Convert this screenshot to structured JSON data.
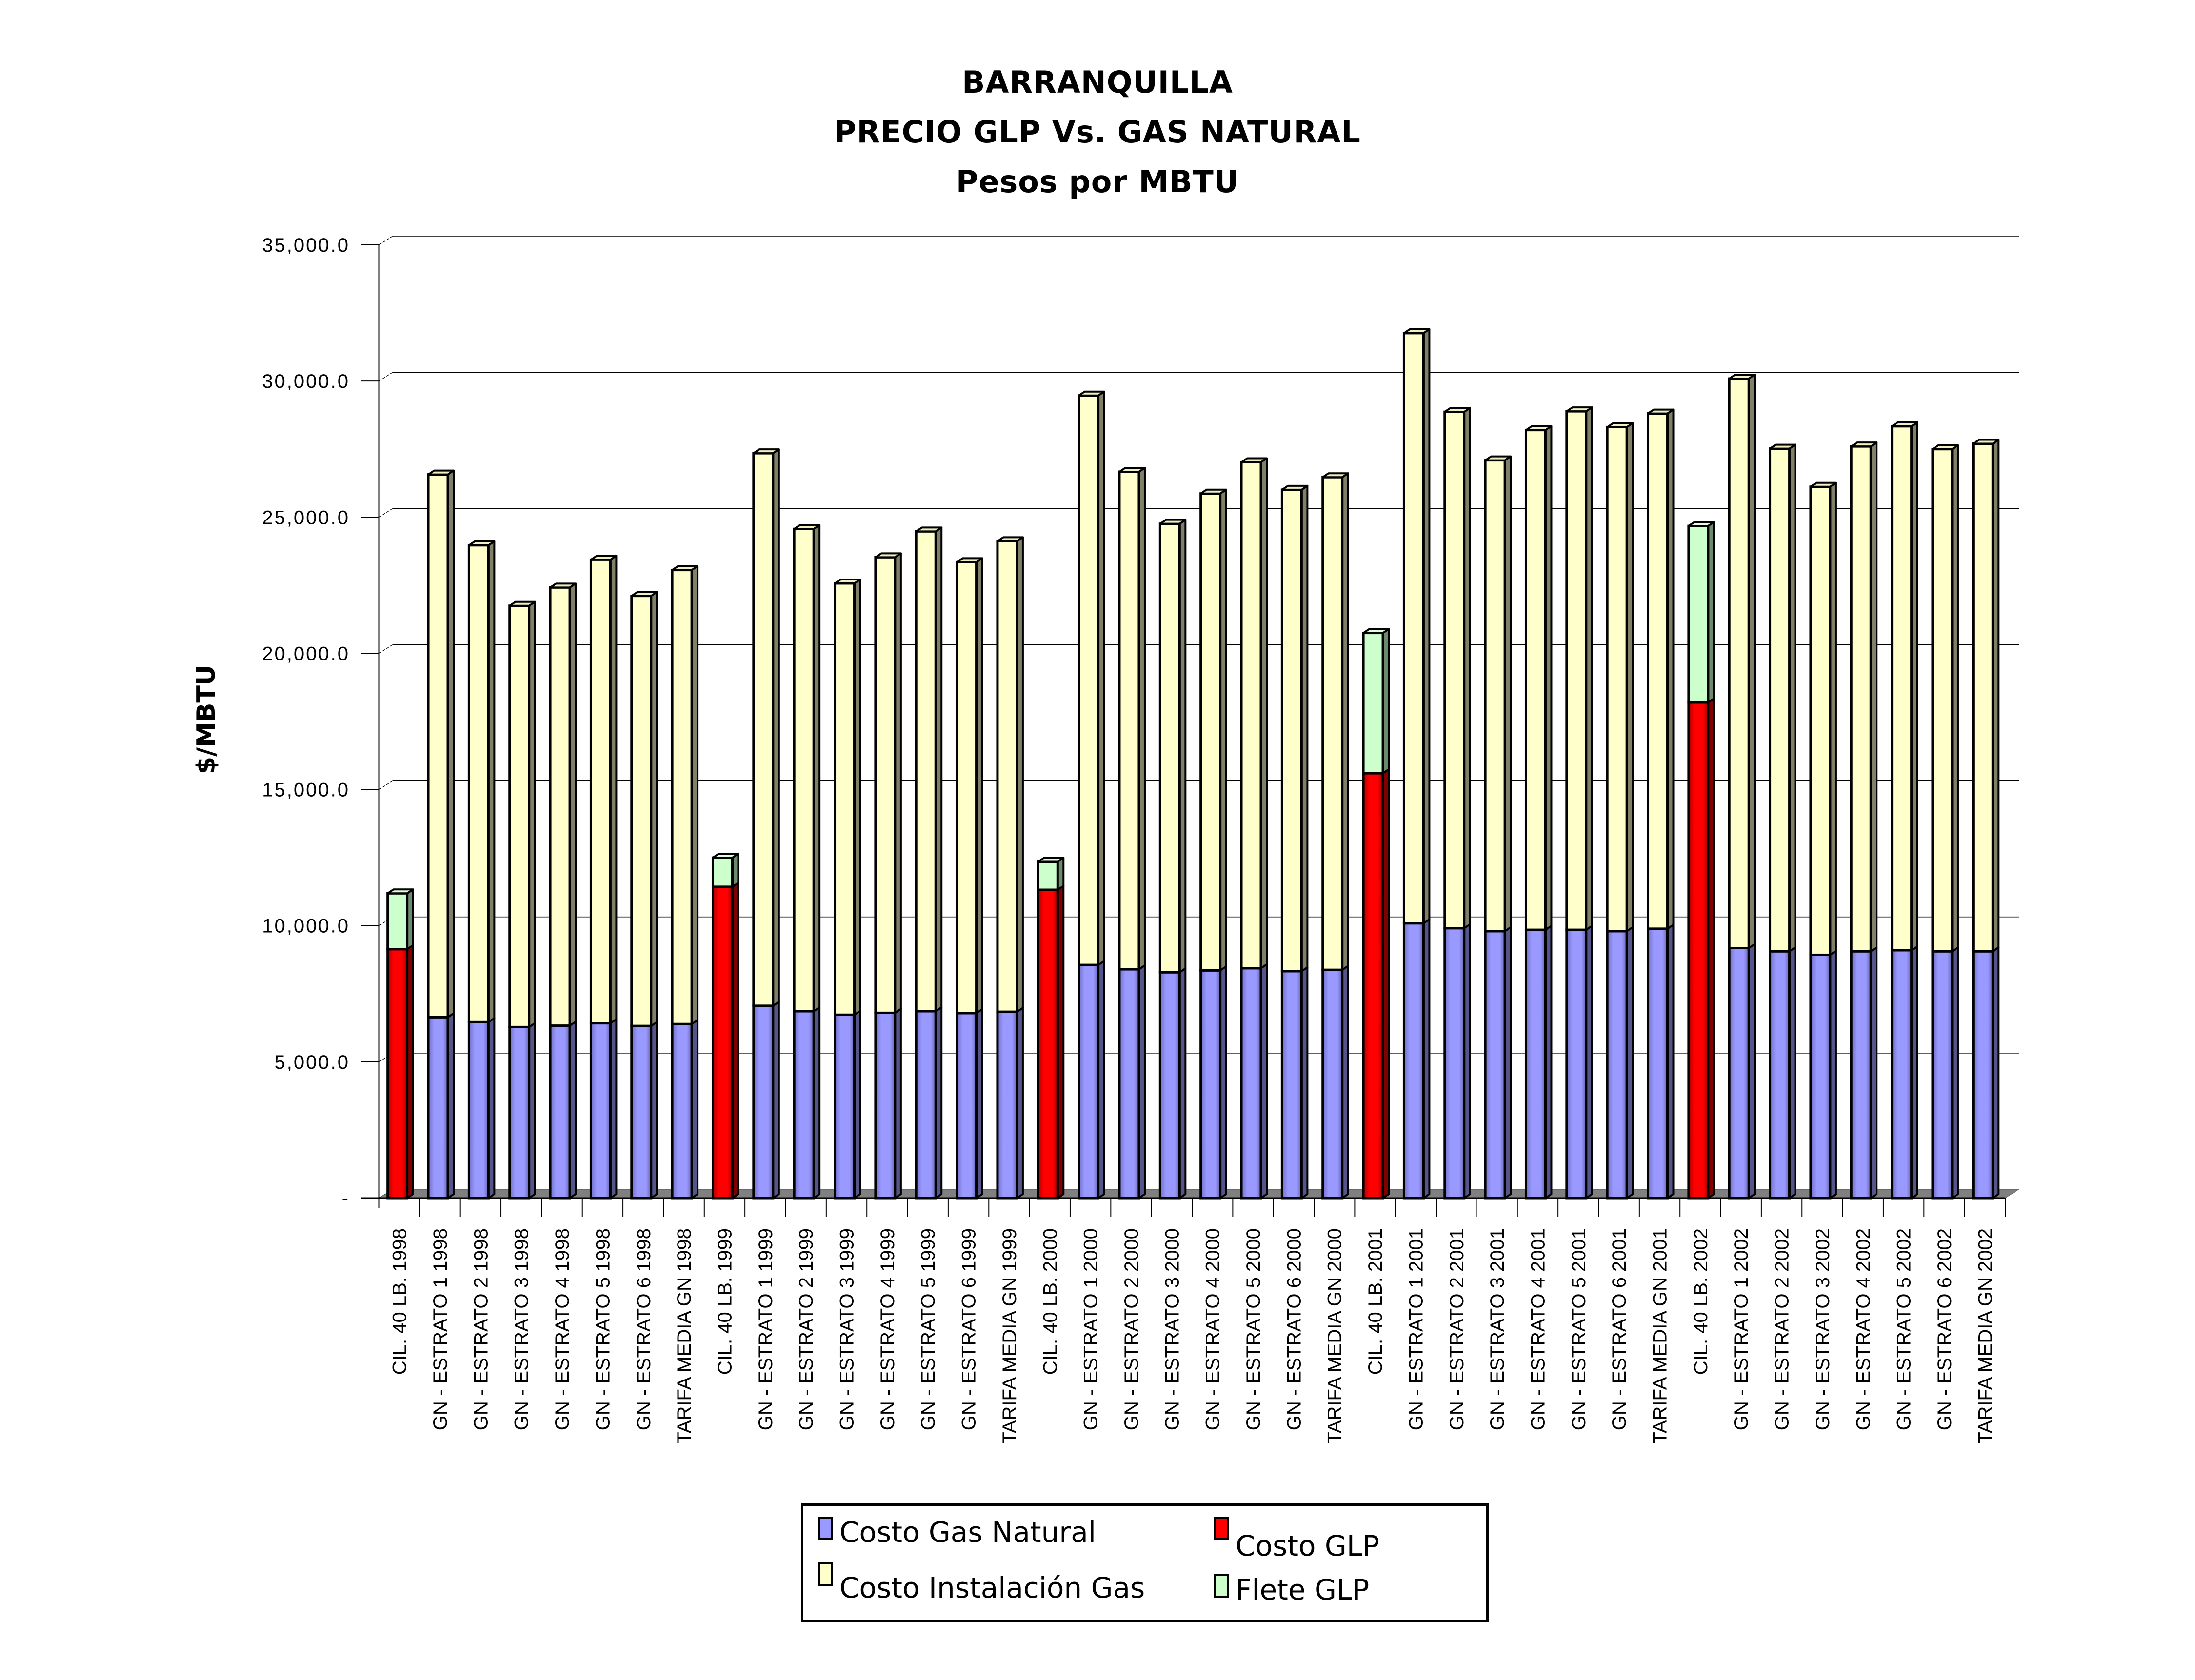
{
  "title": {
    "lines": [
      "BARRANQUILLA",
      "PRECIO GLP Vs. GAS NATURAL",
      "Pesos por MBTU"
    ]
  },
  "legend": {
    "items": [
      {
        "key": "gas_natural",
        "label": "Costo Gas Natural",
        "color": "#9999FF"
      },
      {
        "key": "glp",
        "label": "Costo GLP",
        "color": "#FF0000"
      },
      {
        "key": "instalacion",
        "label": "Costo Instalación Gas",
        "color": "#FFFFCC"
      },
      {
        "key": "flete",
        "label": "Flete GLP",
        "color": "#CCFFCC"
      }
    ]
  },
  "chart_data": {
    "type": "bar",
    "stacked": true,
    "three_d": true,
    "title": "BARRANQUILLA / PRECIO GLP Vs. GAS NATURAL / Pesos por MBTU",
    "xlabel": "",
    "ylabel": "$/MBTU",
    "ylim": [
      0,
      35000
    ],
    "yticks": [
      0,
      5000,
      10000,
      15000,
      20000,
      25000,
      30000,
      35000
    ],
    "ytick_labels": [
      "-",
      "5,000.0",
      "10,000.0",
      "15,000.0",
      "20,000.0",
      "25,000.0",
      "30,000.0",
      "35,000.0"
    ],
    "grid": true,
    "legend_position": "bottom",
    "categories": [
      "CIL. 40 LB. 1998",
      "GN - ESTRATO 1 1998",
      "GN - ESTRATO 2 1998",
      "GN - ESTRATO 3 1998",
      "GN - ESTRATO 4 1998",
      "GN - ESTRATO 5 1998",
      "GN - ESTRATO 6 1998",
      "TARIFA MEDIA GN 1998",
      "CIL. 40 LB. 1999",
      "GN - ESTRATO 1 1999",
      "GN - ESTRATO 2 1999",
      "GN - ESTRATO 3 1999",
      "GN - ESTRATO 4 1999",
      "GN - ESTRATO 5 1999",
      "GN - ESTRATO 6 1999",
      "TARIFA MEDIA GN 1999",
      "CIL. 40 LB. 2000",
      "GN - ESTRATO 1 2000",
      "GN - ESTRATO 2 2000",
      "GN - ESTRATO 3 2000",
      "GN - ESTRATO 4 2000",
      "GN - ESTRATO 5 2000",
      "GN - ESTRATO 6 2000",
      "TARIFA MEDIA GN 2000",
      "CIL. 40 LB. 2001",
      "GN - ESTRATO 1 2001",
      "GN - ESTRATO 2 2001",
      "GN - ESTRATO 3 2001",
      "GN - ESTRATO 4 2001",
      "GN - ESTRATO 5 2001",
      "GN - ESTRATO 6 2001",
      "TARIFA MEDIA GN 2001",
      "CIL. 40 LB. 2002",
      "GN - ESTRATO 1 2002",
      "GN - ESTRATO 2 2002",
      "GN - ESTRATO 3 2002",
      "GN - ESTRATO 4 2002",
      "GN - ESTRATO 5 2002",
      "GN - ESTRATO 6 2002",
      "TARIFA MEDIA GN 2002"
    ],
    "series": [
      {
        "name": "Costo Gas Natural",
        "key": "gas_natural",
        "color": "#9999FF",
        "values": [
          0,
          6640,
          6460,
          6280,
          6330,
          6420,
          6320,
          6390,
          0,
          7060,
          6860,
          6730,
          6800,
          6860,
          6790,
          6840,
          0,
          8560,
          8400,
          8290,
          8360,
          8440,
          8330,
          8380,
          0,
          10090,
          9910,
          9800,
          9850,
          9850,
          9800,
          9890,
          0,
          9180,
          9060,
          8930,
          9060,
          9100,
          9060,
          9060
        ]
      },
      {
        "name": "Costo GLP",
        "key": "glp",
        "color": "#FF0000",
        "values": [
          9140,
          0,
          0,
          0,
          0,
          0,
          0,
          0,
          11430,
          0,
          0,
          0,
          0,
          0,
          0,
          0,
          11320,
          0,
          0,
          0,
          0,
          0,
          0,
          0,
          15600,
          0,
          0,
          0,
          0,
          0,
          0,
          0,
          18200,
          0,
          0,
          0,
          0,
          0,
          0,
          0
        ]
      },
      {
        "name": "Costo Instalación Gas",
        "key": "instalacion",
        "color": "#FFFFCC",
        "values": [
          0,
          19930,
          17510,
          15470,
          16090,
          17020,
          15790,
          16670,
          0,
          20290,
          17710,
          15840,
          16730,
          17620,
          16560,
          17280,
          0,
          20910,
          18270,
          16470,
          17510,
          18580,
          17680,
          18090,
          0,
          21670,
          18960,
          17290,
          18350,
          19040,
          18510,
          18920,
          0,
          20910,
          18460,
          17190,
          18540,
          19240,
          18440,
          18640
        ]
      },
      {
        "name": "Flete GLP",
        "key": "flete",
        "color": "#CCFFCC",
        "values": [
          2050,
          0,
          0,
          0,
          0,
          0,
          0,
          0,
          1070,
          0,
          0,
          0,
          0,
          0,
          0,
          0,
          1030,
          0,
          0,
          0,
          0,
          0,
          0,
          0,
          5150,
          0,
          0,
          0,
          0,
          0,
          0,
          0,
          6480,
          0,
          0,
          0,
          0,
          0,
          0,
          0
        ]
      }
    ]
  }
}
